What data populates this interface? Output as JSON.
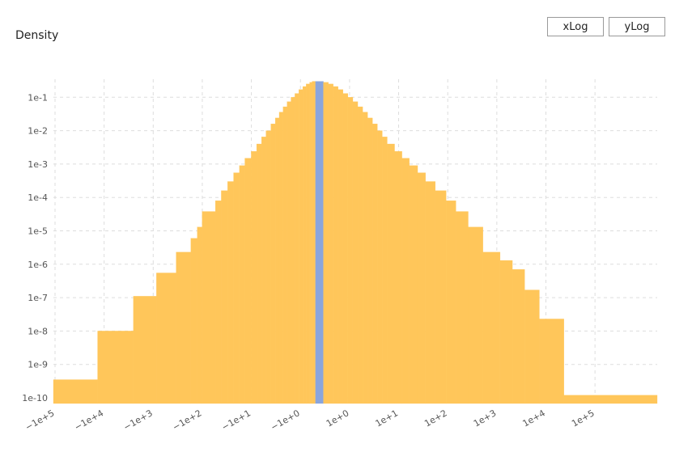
{
  "header": {
    "title": "Density"
  },
  "controls": {
    "xlog_label": "xLog",
    "ylog_label": "yLog"
  },
  "colors": {
    "bar": "#ffc65a",
    "highlight": "#8aa5dc",
    "grid": "#dddddd",
    "text": "#555555"
  },
  "chart_data": {
    "type": "bar",
    "title": "",
    "ylabel": "Density",
    "xlabel": "",
    "y_scale": "log",
    "ylim": [
      1e-10,
      0.35
    ],
    "grid": true,
    "x_ticks": [
      "−1e+5",
      "−1e+4",
      "−1e+3",
      "−1e+2",
      "−1e+1",
      "−1e+0",
      "1e+0",
      "1e+1",
      "1e+2",
      "1e+3",
      "1e+4",
      "1e+5"
    ],
    "y_ticks": [
      "1e-10",
      "1e-9",
      "1e-8",
      "1e-7",
      "1e-6",
      "1e-5",
      "1e-4",
      "1e-3",
      "1e-2",
      "1e-1"
    ],
    "bins": [
      [
        -5.0,
        -4.1,
        3.5e-10
      ],
      [
        -4.1,
        -3.37,
        1e-08
      ],
      [
        -3.37,
        -2.9,
        1.1e-07
      ],
      [
        -2.9,
        -2.5,
        5.5e-07
      ],
      [
        -2.5,
        -2.2,
        2.3e-06
      ],
      [
        -2.2,
        -2.07,
        6e-06
      ],
      [
        -2.07,
        -1.97,
        1.3e-05
      ],
      [
        -1.97,
        -1.7,
        3.8e-05
      ],
      [
        -1.7,
        -1.58,
        8e-05
      ],
      [
        -1.58,
        -1.45,
        0.00016
      ],
      [
        -1.45,
        -1.33,
        0.0003
      ],
      [
        -1.33,
        -1.21,
        0.00055
      ],
      [
        -1.21,
        -1.1,
        0.0009
      ],
      [
        -1.1,
        -0.97,
        0.0015
      ],
      [
        -0.97,
        -0.86,
        0.0024
      ],
      [
        -0.86,
        -0.76,
        0.004
      ],
      [
        -0.76,
        -0.67,
        0.0065
      ],
      [
        -0.67,
        -0.57,
        0.01
      ],
      [
        -0.57,
        -0.48,
        0.016
      ],
      [
        -0.48,
        -0.4,
        0.024
      ],
      [
        -0.4,
        -0.32,
        0.036
      ],
      [
        -0.32,
        -0.24,
        0.052
      ],
      [
        -0.24,
        -0.16,
        0.074
      ],
      [
        -0.16,
        -0.08,
        0.1
      ],
      [
        -0.08,
        0.0,
        0.13
      ],
      [
        0.0,
        0.08,
        0.17
      ],
      [
        0.08,
        0.15,
        0.21
      ],
      [
        0.15,
        0.22,
        0.25
      ],
      [
        0.22,
        0.27,
        0.28
      ],
      [
        0.27,
        0.34,
        0.3
      ],
      [
        0.34,
        0.5,
        0.3
      ],
      [
        0.5,
        0.6,
        0.28
      ],
      [
        0.6,
        0.7,
        0.25
      ],
      [
        0.7,
        0.8,
        0.21
      ],
      [
        0.8,
        0.9,
        0.17
      ],
      [
        0.9,
        1.0,
        0.13
      ],
      [
        1.0,
        1.1,
        0.1
      ],
      [
        1.1,
        1.2,
        0.074
      ],
      [
        1.2,
        1.3,
        0.052
      ],
      [
        1.3,
        1.4,
        0.036
      ],
      [
        1.4,
        1.5,
        0.024
      ],
      [
        1.5,
        1.6,
        0.016
      ],
      [
        1.6,
        1.7,
        0.01
      ],
      [
        1.7,
        1.8,
        0.0065
      ],
      [
        1.8,
        1.95,
        0.004
      ],
      [
        1.95,
        2.1,
        0.0024
      ],
      [
        2.1,
        2.25,
        0.0015
      ],
      [
        2.25,
        2.42,
        0.0009
      ],
      [
        2.42,
        2.58,
        0.00055
      ],
      [
        2.58,
        2.78,
        0.0003
      ],
      [
        2.78,
        3.0,
        0.00016
      ],
      [
        3.0,
        3.2,
        8e-05
      ],
      [
        3.2,
        3.45,
        3.8e-05
      ],
      [
        3.45,
        3.75,
        1.3e-05
      ],
      [
        3.75,
        4.1,
        2.3e-06
      ],
      [
        4.1,
        4.35,
        1.3e-06
      ],
      [
        4.35,
        4.6,
        7e-07
      ],
      [
        4.6,
        4.9,
        1.7e-07
      ],
      [
        4.9,
        5.4,
        2.3e-08
      ],
      [
        5.4,
        7.3,
        1.2e-10
      ]
    ],
    "highlight_bin": [
      0.34,
      0.5,
      0.3
    ]
  }
}
